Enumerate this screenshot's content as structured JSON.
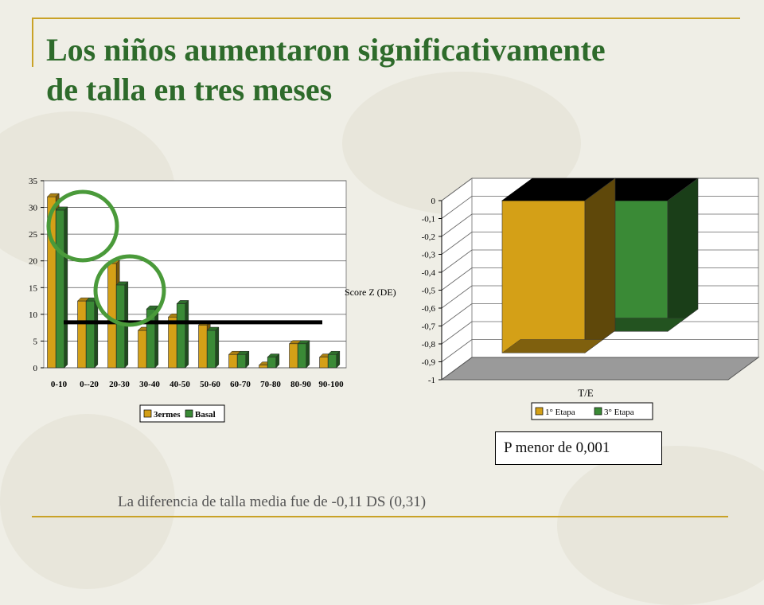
{
  "slide": {
    "title_line1": "Los niños aumentaron significativamente",
    "title_line2": "de talla en tres meses",
    "note_box": "P menor de 0,001",
    "footnote": "La diferencia de talla media fue de -0,11 DS (0,31)"
  },
  "colors": {
    "title": "#2e6b2b",
    "accent_rule": "#c9a227",
    "series_gold": "#d4a017",
    "series_green": "#3a8a36",
    "circle": "#4a9a3a"
  },
  "chart_data": [
    {
      "type": "bar",
      "title": "",
      "xlabel": "",
      "ylabel": "",
      "categories": [
        "0-10",
        "0--20",
        "20-30",
        "30-40",
        "40-50",
        "50-60",
        "60-70",
        "70-80",
        "80-90",
        "90-100"
      ],
      "yticks": [
        "0",
        "5",
        "10",
        "15",
        "20",
        "25",
        "30",
        "35"
      ],
      "ylim": [
        0,
        35
      ],
      "series": [
        {
          "name": "3ermes",
          "values": [
            32,
            12.5,
            19.5,
            7,
            9.5,
            8,
            2.5,
            0.5,
            4.5,
            2
          ],
          "color": "#d4a017"
        },
        {
          "name": "Basal",
          "values": [
            29.5,
            12.5,
            15.5,
            11,
            12,
            7,
            2.5,
            2,
            4.5,
            2.5
          ],
          "color": "#3a8a36"
        }
      ],
      "reference_line": 8.5,
      "highlight_circles": 2,
      "grid": true,
      "legend": "bottom"
    },
    {
      "type": "bar",
      "title": "",
      "xlabel": "T/E",
      "ylabel": "Score Z (DE)",
      "categories": [
        "T/E"
      ],
      "yticks": [
        "0",
        "-0,1",
        "-0,2",
        "-0,3",
        "-0,4",
        "-0,5",
        "-0,6",
        "-0,7",
        "-0,8",
        "-0,9",
        "-1"
      ],
      "ylim": [
        -1,
        0
      ],
      "series": [
        {
          "name": "1° Etapa",
          "values": [
            -0.85
          ],
          "color": "#d4a017"
        },
        {
          "name": "3° Etapa",
          "values": [
            -0.73
          ],
          "color": "#3a8a36"
        }
      ],
      "grid": true,
      "legend": "bottom"
    }
  ]
}
